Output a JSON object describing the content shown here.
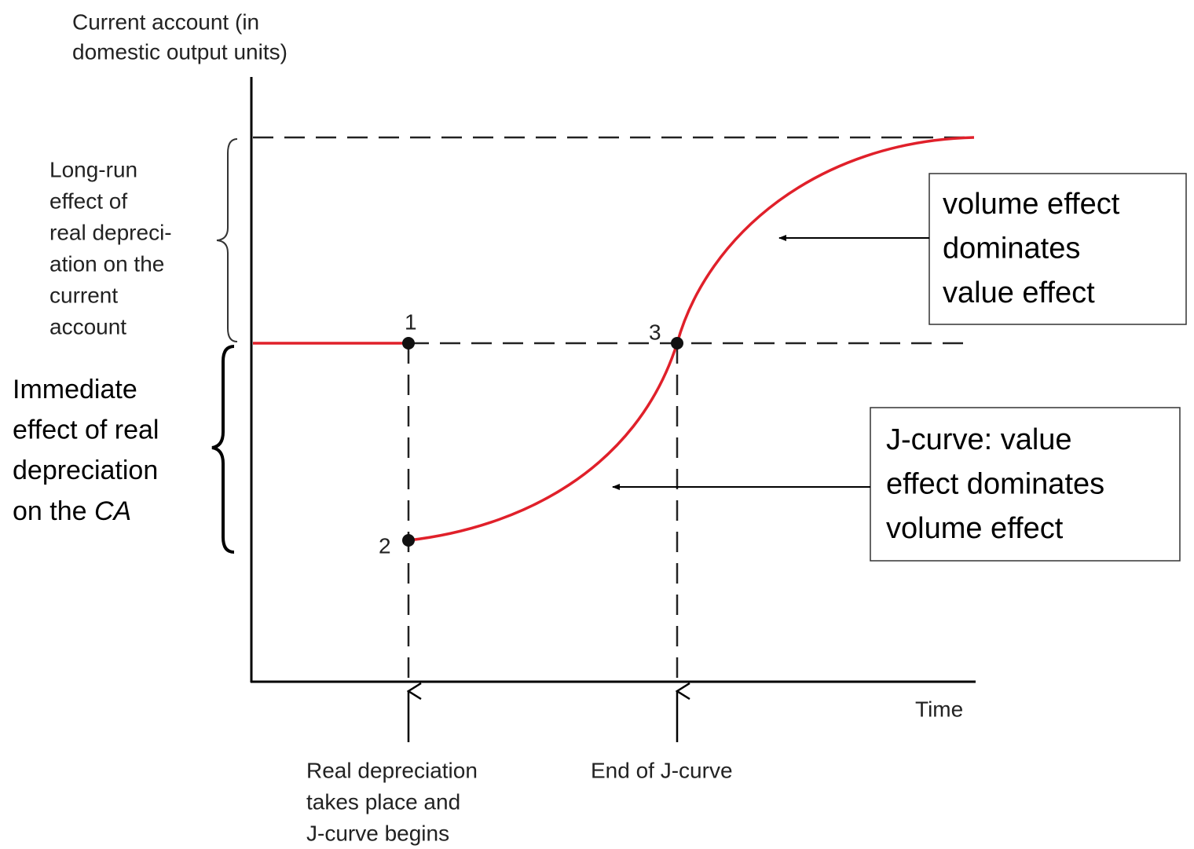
{
  "y_axis_label": [
    "Current account (in",
    "domestic output units)"
  ],
  "x_axis_label": "Time",
  "long_run_label": [
    "Long-run",
    "effect of",
    "real depreci-",
    "ation on the",
    "current",
    "account"
  ],
  "immediate_label": [
    "Immediate",
    "effect of real",
    "depreciation"
  ],
  "immediate_label_last": {
    "text": "on the ",
    "emphasis": "CA"
  },
  "points": [
    {
      "label": "1"
    },
    {
      "label": "2"
    },
    {
      "label": "3"
    }
  ],
  "start_label": [
    "Real depreciation",
    "takes place and",
    "J-curve begins"
  ],
  "end_label": [
    "End of J-curve"
  ],
  "upper_box": [
    "volume effect",
    "dominates",
    "value effect"
  ],
  "lower_box": [
    "J-curve:  value",
    "effect dominates",
    "volume effect"
  ]
}
